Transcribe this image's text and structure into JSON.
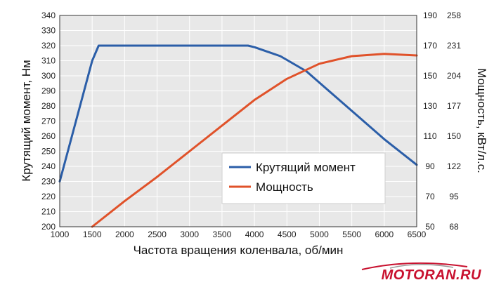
{
  "chart_data": {
    "type": "line",
    "xlabel": "Частота вращения коленвала, об/мин",
    "ylabel_left": "Крутящий момент, Нм",
    "ylabel_right": "Мощность, кВт/л.с.",
    "xlim": [
      1000,
      6500
    ],
    "x_ticks": [
      "1000",
      "1500",
      "2000",
      "2500",
      "3000",
      "3500",
      "4000",
      "4500",
      "5000",
      "5500",
      "6000",
      "6500"
    ],
    "ylim_left": [
      200,
      340
    ],
    "y_left_ticks": [
      "200",
      "210",
      "220",
      "230",
      "240",
      "250",
      "260",
      "270",
      "280",
      "290",
      "300",
      "310",
      "320",
      "330",
      "340"
    ],
    "ylim_right_kw": [
      50,
      190
    ],
    "y_right_kw_ticks": [
      "50",
      "70",
      "90",
      "110",
      "130",
      "150",
      "170",
      "190"
    ],
    "y_right_hp_ticks": [
      "68",
      "95",
      "122",
      "150",
      "177",
      "204",
      "231",
      "258"
    ],
    "grid": true,
    "legend_position": "lower-right",
    "series": [
      {
        "name": "Крутящий момент",
        "axis": "left",
        "color": "#2b5ea8",
        "x": [
          1000,
          1500,
          1600,
          2000,
          3000,
          3900,
          4000,
          4400,
          4800,
          5200,
          5600,
          6000,
          6500
        ],
        "y": [
          230,
          310,
          320,
          320,
          320,
          320,
          319,
          313,
          303,
          288,
          273,
          258,
          241
        ]
      },
      {
        "name": "Мощность",
        "axis": "right",
        "color": "#e0522a",
        "x": [
          1500,
          2000,
          2500,
          3000,
          3500,
          4000,
          4500,
          5000,
          5500,
          6000,
          6500
        ],
        "y": [
          50,
          67,
          83,
          100,
          117,
          134,
          148,
          158,
          163,
          164.5,
          163.5
        ]
      }
    ]
  },
  "watermark": {
    "text": "MOTORAN.RU",
    "color": "#c8102e"
  }
}
